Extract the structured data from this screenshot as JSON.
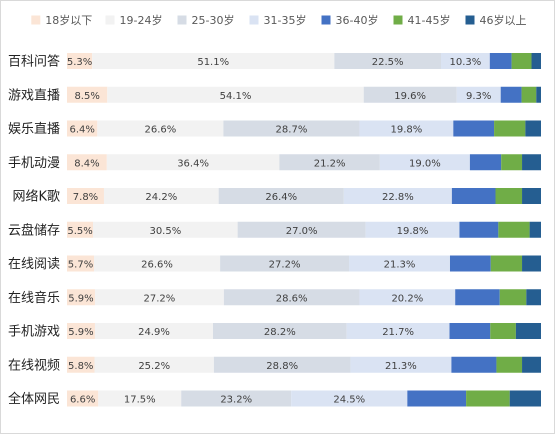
{
  "chart_data": {
    "type": "bar",
    "orientation": "horizontal",
    "stacked": true,
    "percent_stacked": true,
    "legend_position": "top",
    "grid": false,
    "categories": [
      "百科问答",
      "游戏直播",
      "娱乐直播",
      "手机动漫",
      "网络K歌",
      "云盘储存",
      "在线阅读",
      "在线音乐",
      "手机游戏",
      "在线视频",
      "全体网民"
    ],
    "series": [
      {
        "name": "18岁以下",
        "color": "#fbe5d6",
        "values": [
          5.3,
          8.5,
          6.4,
          8.4,
          7.8,
          5.5,
          5.7,
          5.9,
          5.9,
          5.8,
          6.6
        ],
        "labeled": true
      },
      {
        "name": "19-24岁",
        "color": "#f2f2f2",
        "values": [
          51.1,
          54.1,
          26.6,
          36.4,
          24.2,
          30.5,
          26.6,
          27.2,
          24.9,
          25.2,
          17.5
        ],
        "labeled": true
      },
      {
        "name": "25-30岁",
        "color": "#d6dce5",
        "values": [
          22.5,
          19.6,
          28.7,
          21.2,
          26.4,
          27.0,
          27.2,
          28.6,
          28.2,
          28.8,
          23.2
        ],
        "labeled": true
      },
      {
        "name": "31-35岁",
        "color": "#dae3f3",
        "values": [
          10.3,
          9.3,
          19.8,
          19.0,
          22.8,
          19.8,
          21.3,
          20.2,
          21.7,
          21.3,
          24.5
        ],
        "labeled": true
      },
      {
        "name": "36-40岁",
        "color": "#4472c4",
        "values": [
          4.6,
          4.4,
          8.6,
          6.6,
          9.2,
          8.2,
          8.6,
          9.4,
          8.6,
          9.5,
          12.4
        ],
        "labeled": false
      },
      {
        "name": "41-45岁",
        "color": "#70ad47",
        "values": [
          4.2,
          3.1,
          6.6,
          4.4,
          5.6,
          6.6,
          6.6,
          5.6,
          5.4,
          5.4,
          9.2
        ],
        "labeled": false
      },
      {
        "name": "46岁以上",
        "color": "#255e91",
        "values": [
          2.0,
          1.0,
          3.3,
          4.0,
          4.0,
          2.4,
          4.0,
          3.1,
          5.3,
          4.0,
          6.6
        ],
        "labeled": false
      }
    ]
  }
}
